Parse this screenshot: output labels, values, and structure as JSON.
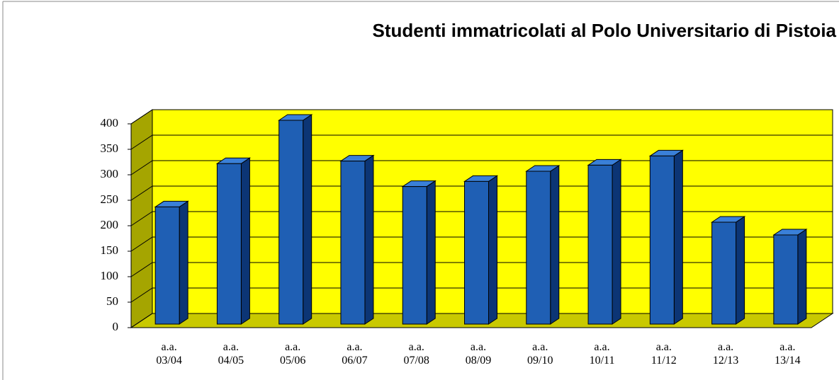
{
  "chart_data": {
    "type": "bar",
    "title": "Studenti immatricolati al Polo Universitario di Pistoia",
    "categories": [
      "a.a. 03/04",
      "a.a. 04/05",
      "a.a. 05/06",
      "a.a. 06/07",
      "a.a. 07/08",
      "a.a. 08/09",
      "a.a. 09/10",
      "a.a. 10/11",
      "a.a. 11/12",
      "a.a. 12/13",
      "a.a. 13/14"
    ],
    "values": [
      230,
      315,
      400,
      320,
      270,
      280,
      300,
      312,
      330,
      200,
      175
    ],
    "color": "#1f5fb4",
    "ylim": [
      0,
      400
    ],
    "yticks": [
      0,
      50,
      100,
      150,
      200,
      250,
      300,
      350,
      400
    ],
    "grid": true
  }
}
